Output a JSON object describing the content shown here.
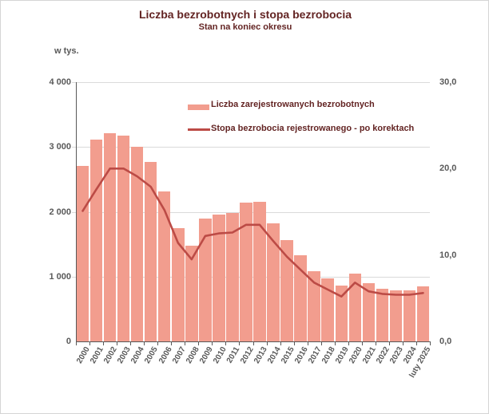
{
  "header": {
    "title": "Liczba bezrobotnych i stopa bezrobocia",
    "subtitle": "Stan na koniec okresu"
  },
  "chart_data": {
    "type": "bar",
    "combo": "bar+line, dual axis",
    "title": "Liczba bezrobotnych i stopa bezrobocia",
    "subtitle": "Stan na koniec okresu",
    "categories": [
      "2000",
      "2001",
      "2002",
      "2003",
      "2004",
      "2005",
      "2006",
      "2007",
      "2008",
      "2009",
      "2010",
      "2011",
      "2012",
      "2013",
      "2014",
      "2015",
      "2016",
      "2017",
      "2018",
      "2019",
      "2020",
      "2021",
      "2022",
      "2023",
      "2024",
      "luty 2025"
    ],
    "series": [
      {
        "name": "Liczba zarejestrowanych bezrobotnych",
        "type": "bar",
        "axis": "left",
        "unit": "tys.",
        "color": "#F29D8E",
        "values": [
          2703,
          3115,
          3217,
          3176,
          3000,
          2773,
          2309,
          1747,
          1474,
          1893,
          1955,
          1983,
          2137,
          2158,
          1825,
          1563,
          1335,
          1082,
          969,
          866,
          1046,
          895,
          812,
          788,
          787,
          854
        ]
      },
      {
        "name": "Stopa bezrobocia rejestrowanego - po korektach",
        "type": "line",
        "axis": "right",
        "unit": "%",
        "color": "#BC4B46",
        "values": [
          15.1,
          17.6,
          20.0,
          20.0,
          19.1,
          17.9,
          15.2,
          11.4,
          9.5,
          12.2,
          12.5,
          12.6,
          13.5,
          13.5,
          11.6,
          9.8,
          8.3,
          6.8,
          6.0,
          5.2,
          6.8,
          5.8,
          5.5,
          5.4,
          5.4,
          5.6
        ]
      }
    ],
    "left_axis": {
      "unit_label": "w tys.",
      "min": 0,
      "max": 4000,
      "tick_labels": [
        "0",
        "1 000",
        "2 000",
        "3 000",
        "4 000"
      ],
      "tick_values": [
        0,
        1000,
        2000,
        3000,
        4000
      ]
    },
    "right_axis": {
      "min": 0,
      "max": 30,
      "tick_labels": [
        "0,0",
        "10,0",
        "20,0",
        "30,0"
      ],
      "tick_values": [
        0,
        10,
        20,
        30
      ]
    },
    "grid": "horizontal, light gray",
    "legend_position": "inside plot, upper center",
    "colors": {
      "bar": "#F29D8E",
      "line": "#BC4B46",
      "title_text": "#632423",
      "axis_text": "#595959",
      "gridline": "#dadada"
    }
  }
}
